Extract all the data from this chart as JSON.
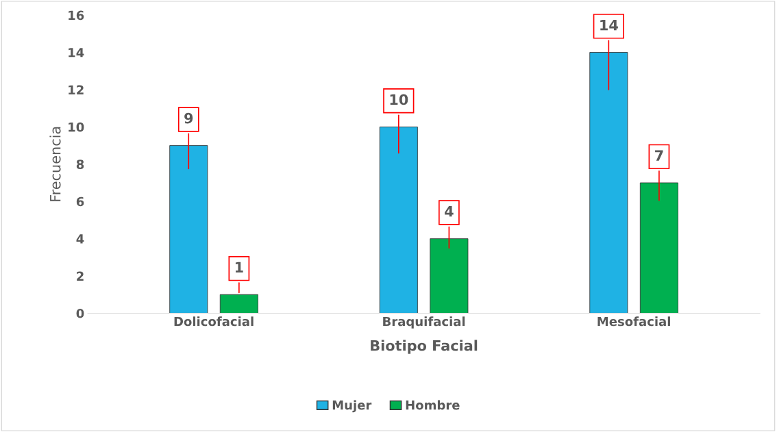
{
  "chart_data": {
    "type": "bar",
    "xlabel": "Biotipo Facial",
    "ylabel": "Frecuencia",
    "categories": [
      "Dolicofacial",
      "Braquifacial",
      "Mesofacial"
    ],
    "series": [
      {
        "name": "Mujer",
        "color": "#1fb2e4",
        "values": [
          9,
          10,
          14
        ]
      },
      {
        "name": "Hombre",
        "color": "#00b050",
        "values": [
          1,
          4,
          7
        ]
      }
    ],
    "ylim": [
      0,
      16
    ],
    "yticks": [
      0,
      2,
      4,
      6,
      8,
      10,
      12,
      14,
      16
    ],
    "grid": false,
    "legend": "bottom",
    "data_labels": true
  }
}
